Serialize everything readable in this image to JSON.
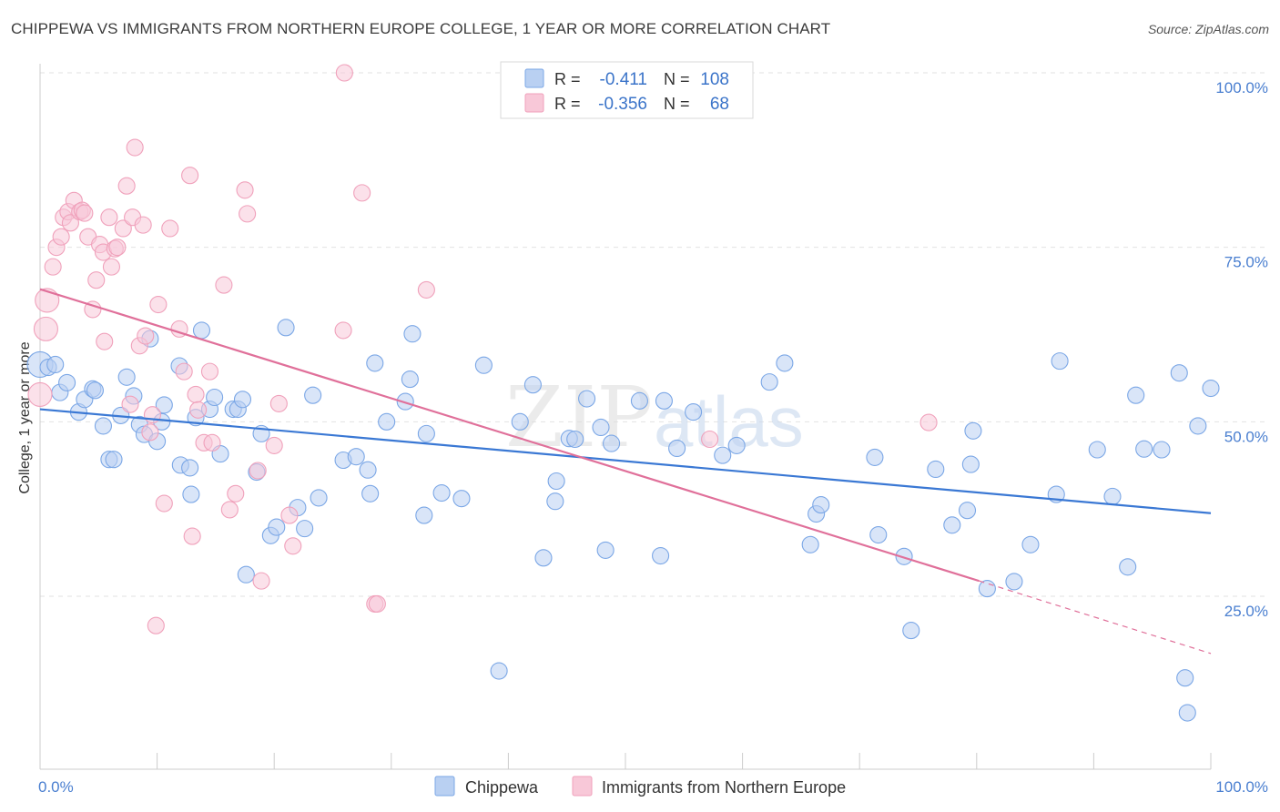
{
  "title": "CHIPPEWA VS IMMIGRANTS FROM NORTHERN EUROPE COLLEGE, 1 YEAR OR MORE CORRELATION CHART",
  "source": "Source: ZipAtlas.com",
  "watermark": {
    "zip": "ZIP",
    "atlas": "atlas"
  },
  "stats": [
    {
      "r_label": "R =",
      "r": "-0.411",
      "n_label": "N =",
      "n": "108",
      "color": "#7ba7e6"
    },
    {
      "r_label": "R =",
      "r": "-0.356",
      "n_label": "N =",
      "n": "68",
      "color": "#f0a1bb"
    }
  ],
  "chart_data": {
    "type": "scatter",
    "title": "CHIPPEWA VS IMMIGRANTS FROM NORTHERN EUROPE COLLEGE, 1 YEAR OR MORE CORRELATION CHART",
    "xlabel": "",
    "ylabel": "College, 1 year or more",
    "x_tick_labels": [
      "0.0%",
      "100.0%"
    ],
    "y_tick_labels": [
      "100.0%",
      "75.0%",
      "50.0%",
      "25.0%"
    ],
    "y_ticks": [
      100,
      75,
      50,
      25
    ],
    "xlim": [
      0,
      100
    ],
    "ylim": [
      0,
      103
    ],
    "grid": true,
    "legend_position": "bottom",
    "series": [
      {
        "name": "Chippewa",
        "color": "#7ba7e6",
        "fill": "#b9d0f2",
        "trend": {
          "x1": 0,
          "y1": 51.8,
          "x2": 100,
          "y2": 36.9
        },
        "points": [
          [
            0.0,
            58.2
          ],
          [
            0.7,
            57.8
          ],
          [
            1.3,
            58.2
          ],
          [
            1.7,
            54.2
          ],
          [
            2.3,
            55.6
          ],
          [
            3.3,
            51.4
          ],
          [
            3.8,
            53.2
          ],
          [
            4.5,
            54.7
          ],
          [
            4.7,
            54.5
          ],
          [
            5.4,
            49.4
          ],
          [
            5.9,
            44.6
          ],
          [
            6.3,
            44.6
          ],
          [
            6.9,
            50.9
          ],
          [
            7.4,
            56.4
          ],
          [
            8.0,
            53.7
          ],
          [
            8.5,
            49.6
          ],
          [
            8.9,
            48.2
          ],
          [
            9.4,
            61.9
          ],
          [
            10.0,
            47.2
          ],
          [
            10.4,
            50.0
          ],
          [
            10.6,
            52.4
          ],
          [
            11.9,
            58.0
          ],
          [
            12.0,
            43.8
          ],
          [
            12.8,
            43.4
          ],
          [
            12.9,
            39.6
          ],
          [
            13.3,
            50.6
          ],
          [
            13.8,
            63.1
          ],
          [
            14.5,
            51.8
          ],
          [
            14.9,
            53.5
          ],
          [
            15.4,
            45.4
          ],
          [
            16.5,
            51.8
          ],
          [
            16.9,
            51.8
          ],
          [
            17.3,
            53.2
          ],
          [
            17.6,
            28.1
          ],
          [
            18.5,
            42.8
          ],
          [
            18.9,
            48.3
          ],
          [
            19.7,
            33.7
          ],
          [
            20.2,
            34.9
          ],
          [
            21.0,
            63.5
          ],
          [
            22.0,
            37.7
          ],
          [
            22.6,
            34.7
          ],
          [
            23.3,
            53.8
          ],
          [
            23.8,
            39.1
          ],
          [
            25.9,
            44.5
          ],
          [
            27.0,
            45.0
          ],
          [
            28.0,
            43.1
          ],
          [
            28.2,
            39.7
          ],
          [
            28.6,
            58.4
          ],
          [
            29.6,
            50.0
          ],
          [
            31.2,
            52.9
          ],
          [
            31.6,
            56.1
          ],
          [
            31.8,
            62.6
          ],
          [
            32.8,
            36.6
          ],
          [
            33.0,
            48.3
          ],
          [
            34.3,
            39.8
          ],
          [
            36.0,
            39.0
          ],
          [
            37.9,
            58.1
          ],
          [
            39.2,
            14.3
          ],
          [
            41.0,
            50.0
          ],
          [
            42.1,
            55.3
          ],
          [
            43.0,
            30.5
          ],
          [
            44.0,
            38.6
          ],
          [
            44.1,
            41.5
          ],
          [
            45.2,
            47.6
          ],
          [
            45.7,
            47.5
          ],
          [
            46.7,
            53.3
          ],
          [
            47.9,
            49.2
          ],
          [
            48.3,
            31.6
          ],
          [
            48.8,
            46.9
          ],
          [
            51.2,
            53.0
          ],
          [
            53.0,
            30.8
          ],
          [
            53.3,
            53.0
          ],
          [
            54.4,
            46.2
          ],
          [
            55.8,
            51.4
          ],
          [
            58.3,
            45.2
          ],
          [
            59.5,
            46.6
          ],
          [
            62.3,
            55.7
          ],
          [
            63.6,
            58.4
          ],
          [
            65.8,
            32.4
          ],
          [
            66.3,
            36.8
          ],
          [
            66.7,
            38.1
          ],
          [
            71.3,
            44.9
          ],
          [
            71.6,
            33.8
          ],
          [
            73.8,
            30.7
          ],
          [
            74.4,
            20.1
          ],
          [
            76.5,
            43.2
          ],
          [
            77.9,
            35.2
          ],
          [
            79.2,
            37.3
          ],
          [
            79.5,
            43.9
          ],
          [
            79.7,
            48.7
          ],
          [
            80.9,
            26.1
          ],
          [
            83.2,
            27.1
          ],
          [
            84.6,
            32.4
          ],
          [
            86.8,
            39.6
          ],
          [
            87.1,
            58.7
          ],
          [
            90.3,
            46.0
          ],
          [
            91.6,
            39.3
          ],
          [
            92.9,
            29.2
          ],
          [
            93.6,
            53.8
          ],
          [
            94.3,
            46.1
          ],
          [
            95.8,
            46.0
          ],
          [
            97.3,
            57.0
          ],
          [
            97.8,
            13.3
          ],
          [
            98.0,
            8.3
          ],
          [
            98.9,
            49.4
          ],
          [
            100.0,
            54.8
          ]
        ]
      },
      {
        "name": "Immigrants from Northern Europe",
        "color": "#f0a1bb",
        "fill": "#f8c8d8",
        "trend": {
          "x1": 0,
          "y1": 69.0,
          "x2": 80.2,
          "y2": 27.2
        },
        "trend_dash": {
          "x1": 80.2,
          "y1": 27.2,
          "x2": 100,
          "y2": 16.8
        },
        "points": [
          [
            0.0,
            53.9
          ],
          [
            0.5,
            63.3
          ],
          [
            0.6,
            67.4
          ],
          [
            1.1,
            72.2
          ],
          [
            1.4,
            75.0
          ],
          [
            1.8,
            76.5
          ],
          [
            2.0,
            79.3
          ],
          [
            2.4,
            80.1
          ],
          [
            2.6,
            78.5
          ],
          [
            2.9,
            81.7
          ],
          [
            3.4,
            80.1
          ],
          [
            3.6,
            80.3
          ],
          [
            3.8,
            79.9
          ],
          [
            4.1,
            76.5
          ],
          [
            4.5,
            66.1
          ],
          [
            4.8,
            70.3
          ],
          [
            5.1,
            75.4
          ],
          [
            5.4,
            74.3
          ],
          [
            5.5,
            61.5
          ],
          [
            5.9,
            79.3
          ],
          [
            6.1,
            72.2
          ],
          [
            6.4,
            74.8
          ],
          [
            6.6,
            75.0
          ],
          [
            7.1,
            77.7
          ],
          [
            7.4,
            83.8
          ],
          [
            7.7,
            52.5
          ],
          [
            7.9,
            79.3
          ],
          [
            8.1,
            89.3
          ],
          [
            8.5,
            60.9
          ],
          [
            8.8,
            78.2
          ],
          [
            9.0,
            62.3
          ],
          [
            9.4,
            48.5
          ],
          [
            9.6,
            51.0
          ],
          [
            9.9,
            20.8
          ],
          [
            10.1,
            66.8
          ],
          [
            10.6,
            38.3
          ],
          [
            11.1,
            77.7
          ],
          [
            11.9,
            63.3
          ],
          [
            12.3,
            57.2
          ],
          [
            12.8,
            85.3
          ],
          [
            13.0,
            33.6
          ],
          [
            13.3,
            53.9
          ],
          [
            13.5,
            51.7
          ],
          [
            14.0,
            47.0
          ],
          [
            14.5,
            57.2
          ],
          [
            14.7,
            47.0
          ],
          [
            15.7,
            69.6
          ],
          [
            16.2,
            37.4
          ],
          [
            16.7,
            39.7
          ],
          [
            17.5,
            83.2
          ],
          [
            17.7,
            79.8
          ],
          [
            18.6,
            43.0
          ],
          [
            18.9,
            27.2
          ],
          [
            20.0,
            46.6
          ],
          [
            20.4,
            52.6
          ],
          [
            21.3,
            36.6
          ],
          [
            21.6,
            32.2
          ],
          [
            25.9,
            63.1
          ],
          [
            26.0,
            100.0
          ],
          [
            27.5,
            82.8
          ],
          [
            28.6,
            23.9
          ],
          [
            28.8,
            23.9
          ],
          [
            33.0,
            68.9
          ],
          [
            57.2,
            47.5
          ],
          [
            75.9,
            49.9
          ]
        ]
      }
    ]
  },
  "legend": [
    {
      "label": "Chippewa",
      "color": "#7ba7e6",
      "fill": "#b9d0f2"
    },
    {
      "label": "Immigrants from Northern Europe",
      "color": "#f0a1bb",
      "fill": "#f8c8d8"
    }
  ]
}
